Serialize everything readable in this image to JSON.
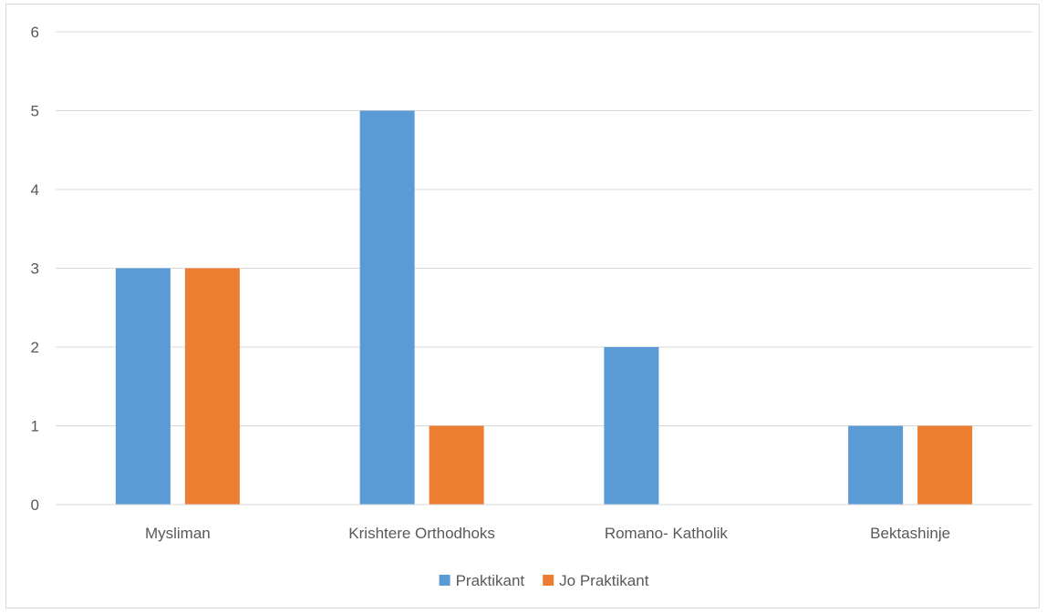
{
  "chart_data": {
    "type": "bar",
    "categories": [
      "Mysliman",
      "Krishtere Orthodhoks",
      "Romano- Katholik",
      "Bektashinje"
    ],
    "series": [
      {
        "name": "Praktikant",
        "values": [
          3,
          5,
          2,
          1
        ],
        "color": "#5b9bd5"
      },
      {
        "name": "Jo Praktikant",
        "values": [
          3,
          1,
          0,
          1
        ],
        "color": "#ed7d31"
      }
    ],
    "ylim": [
      0,
      6
    ],
    "yticks": [
      0,
      1,
      2,
      3,
      4,
      5,
      6
    ],
    "grid": true,
    "legend_position": "bottom"
  }
}
